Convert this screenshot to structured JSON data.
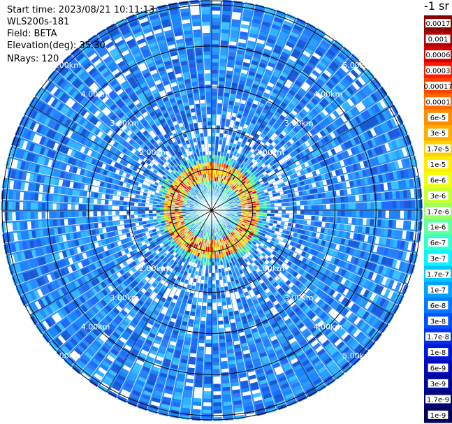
{
  "info": {
    "start_time": "Start time: 2023/08/21 10:11:13",
    "device": "WLS200s-181",
    "field": "Field: BETA",
    "elevation": "Elevation(deg): 35.30",
    "nrays": "NRays: 120"
  },
  "chart_data": {
    "type": "heatmap",
    "projection": "polar",
    "field": "BETA",
    "elevation_deg": 35.3,
    "nrays": 120,
    "range_rings_km": [
      1,
      2,
      3,
      4,
      5
    ],
    "ring_labels": [
      "2.00km",
      "3.00km",
      "4.00km",
      "5.00km"
    ],
    "max_range_km": 5.1,
    "spokes": 12,
    "colorbar": {
      "title": "-1 sr",
      "labels": [
        "0.0017",
        "0.001",
        "0.0006",
        "0.0003",
        "0.00017",
        "0.0001",
        "6e-5",
        "3e-5",
        "1.7e-5",
        "1e-5",
        "6e-6",
        "3e-6",
        "1.7e-6",
        "1e-6",
        "6e-7",
        "3e-7",
        "1.7e-7",
        "1e-7",
        "6e-8",
        "3e-8",
        "1.7e-8",
        "1e-8",
        "6e-9",
        "3e-9",
        "1.7e-9",
        "1e-9"
      ],
      "colors": [
        "#8a0000",
        "#b00000",
        "#d80000",
        "#ff1a00",
        "#ff4400",
        "#ff6a00",
        "#ff8c00",
        "#ffad00",
        "#ffd000",
        "#ffee00",
        "#f0ff10",
        "#c8ff30",
        "#98ff60",
        "#60ffa0",
        "#30ffd0",
        "#10f0ff",
        "#00c8ff",
        "#00a0ff",
        "#0078ff",
        "#0050ff",
        "#0030f0",
        "#0018d8",
        "#0008b8",
        "#000898",
        "#000078",
        "#000058"
      ]
    }
  }
}
